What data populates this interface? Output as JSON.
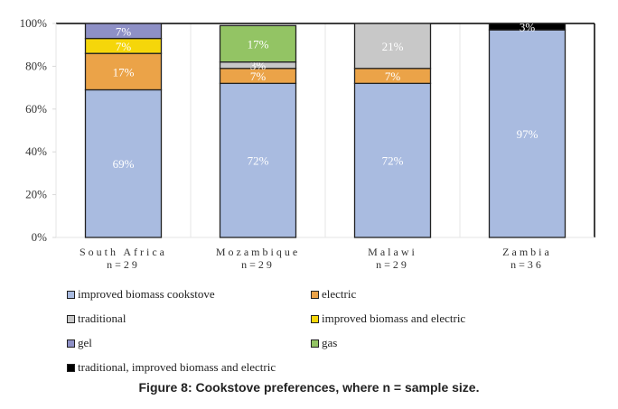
{
  "chart_data": {
    "type": "bar",
    "stacked": true,
    "title": "",
    "xlabel": "",
    "ylabel": "",
    "ylim": [
      0,
      100
    ],
    "yticks": [
      "0%",
      "20%",
      "40%",
      "60%",
      "80%",
      "100%"
    ],
    "grid": "vertical separators",
    "legend_position": "bottom",
    "categories": [
      "South Africa",
      "Mozambique",
      "Malawi",
      "Zambia"
    ],
    "category_sublabels": [
      "n=29",
      "n=29",
      "n=29",
      "n=36"
    ],
    "series": [
      {
        "name": "improved biomass cookstove",
        "color": "#a9bbe0",
        "values": [
          69,
          72,
          72,
          97
        ]
      },
      {
        "name": "electric",
        "color": "#eba348",
        "values": [
          17,
          7,
          7,
          0
        ]
      },
      {
        "name": "traditional",
        "color": "#c8c8c8",
        "values": [
          0,
          3,
          21,
          0
        ]
      },
      {
        "name": "improved biomass and electric",
        "color": "#f5d60a",
        "values": [
          7,
          0,
          0,
          0
        ]
      },
      {
        "name": "gel",
        "color": "#8e90c6",
        "values": [
          7,
          0,
          0,
          0
        ]
      },
      {
        "name": "gas",
        "color": "#93c464",
        "values": [
          0,
          17,
          0,
          0
        ]
      },
      {
        "name": "traditional, improved biomass and electric",
        "color": "#000000",
        "values": [
          0,
          0,
          0,
          3
        ]
      }
    ]
  },
  "legend": [
    {
      "label": "improved biomass cookstove",
      "color": "#a9bbe0"
    },
    {
      "label": "electric",
      "color": "#eba348"
    },
    {
      "label": "traditional",
      "color": "#c8c8c8"
    },
    {
      "label": "improved biomass and electric",
      "color": "#f5d60a"
    },
    {
      "label": "gel",
      "color": "#8e90c6"
    },
    {
      "label": "gas",
      "color": "#93c464"
    },
    {
      "label": "traditional, improved biomass and electric",
      "color": "#000000"
    }
  ],
  "caption": "Figure 8: Cookstove preferences, where n = sample size."
}
